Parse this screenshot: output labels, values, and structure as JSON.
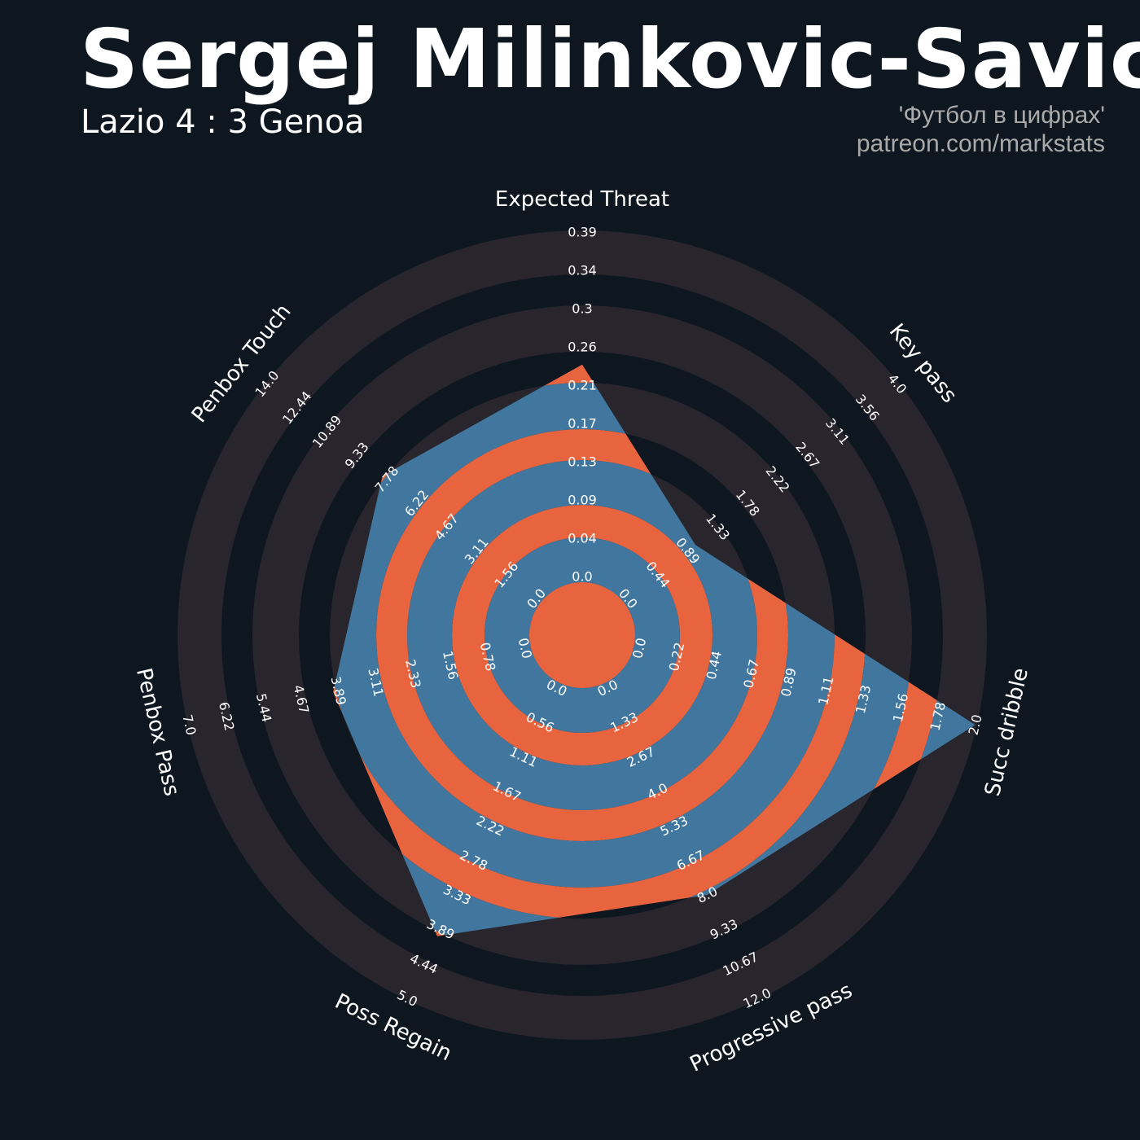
{
  "header": {
    "title": "Sergej Milinkovic-Savic",
    "subtitle": "Lazio 4 : 3 Genoa",
    "credit_line1": "'Футбол в цифрах'",
    "credit_line2": "patreon.com/markstats"
  },
  "colors": {
    "background": "#0e1720",
    "ring_outer": "#28252c",
    "polygon_face": "#41779f",
    "polygon_ring": "#e8643f",
    "text": "#ffffff",
    "credit": "#a9a9a9"
  },
  "chart_data": {
    "type": "radar",
    "params": [
      "Expected Threat",
      "Key pass",
      "Succ dribble",
      "Progressive pass",
      "Poss Regain",
      "Penbox Pass",
      "Penbox Touch"
    ],
    "mins": [
      0,
      0,
      0,
      0,
      0,
      0,
      0
    ],
    "maxs": [
      0.39,
      4.0,
      2.0,
      12.0,
      5.0,
      7.0,
      14.0
    ],
    "values": [
      0.24,
      1.0,
      2.0,
      8.0,
      4.0,
      4.0,
      8.0
    ],
    "tick_labels": [
      [
        "0.0",
        "0.04",
        "0.09",
        "0.13",
        "0.17",
        "0.21",
        "0.26",
        "0.3",
        "0.34",
        "0.39"
      ],
      [
        "0.0",
        "0.44",
        "0.89",
        "1.33",
        "1.78",
        "2.22",
        "2.67",
        "3.11",
        "3.56",
        "4.0"
      ],
      [
        "0.0",
        "0.22",
        "0.44",
        "0.67",
        "0.89",
        "1.11",
        "1.33",
        "1.56",
        "1.78",
        "2.0"
      ],
      [
        "0.0",
        "1.33",
        "2.67",
        "4.0",
        "5.33",
        "6.67",
        "8.0",
        "9.33",
        "10.67",
        "12.0"
      ],
      [
        "0.0",
        "0.56",
        "1.11",
        "1.67",
        "2.22",
        "2.78",
        "3.33",
        "3.89",
        "4.44",
        "5.0"
      ],
      [
        "0.0",
        "0.78",
        "1.56",
        "2.33",
        "3.11",
        "3.89",
        "4.67",
        "5.44",
        "6.22",
        "7.0"
      ],
      [
        "0.0",
        "1.56",
        "3.11",
        "4.67",
        "6.22",
        "7.78",
        "9.33",
        "10.89",
        "12.44",
        "14.0"
      ]
    ]
  }
}
